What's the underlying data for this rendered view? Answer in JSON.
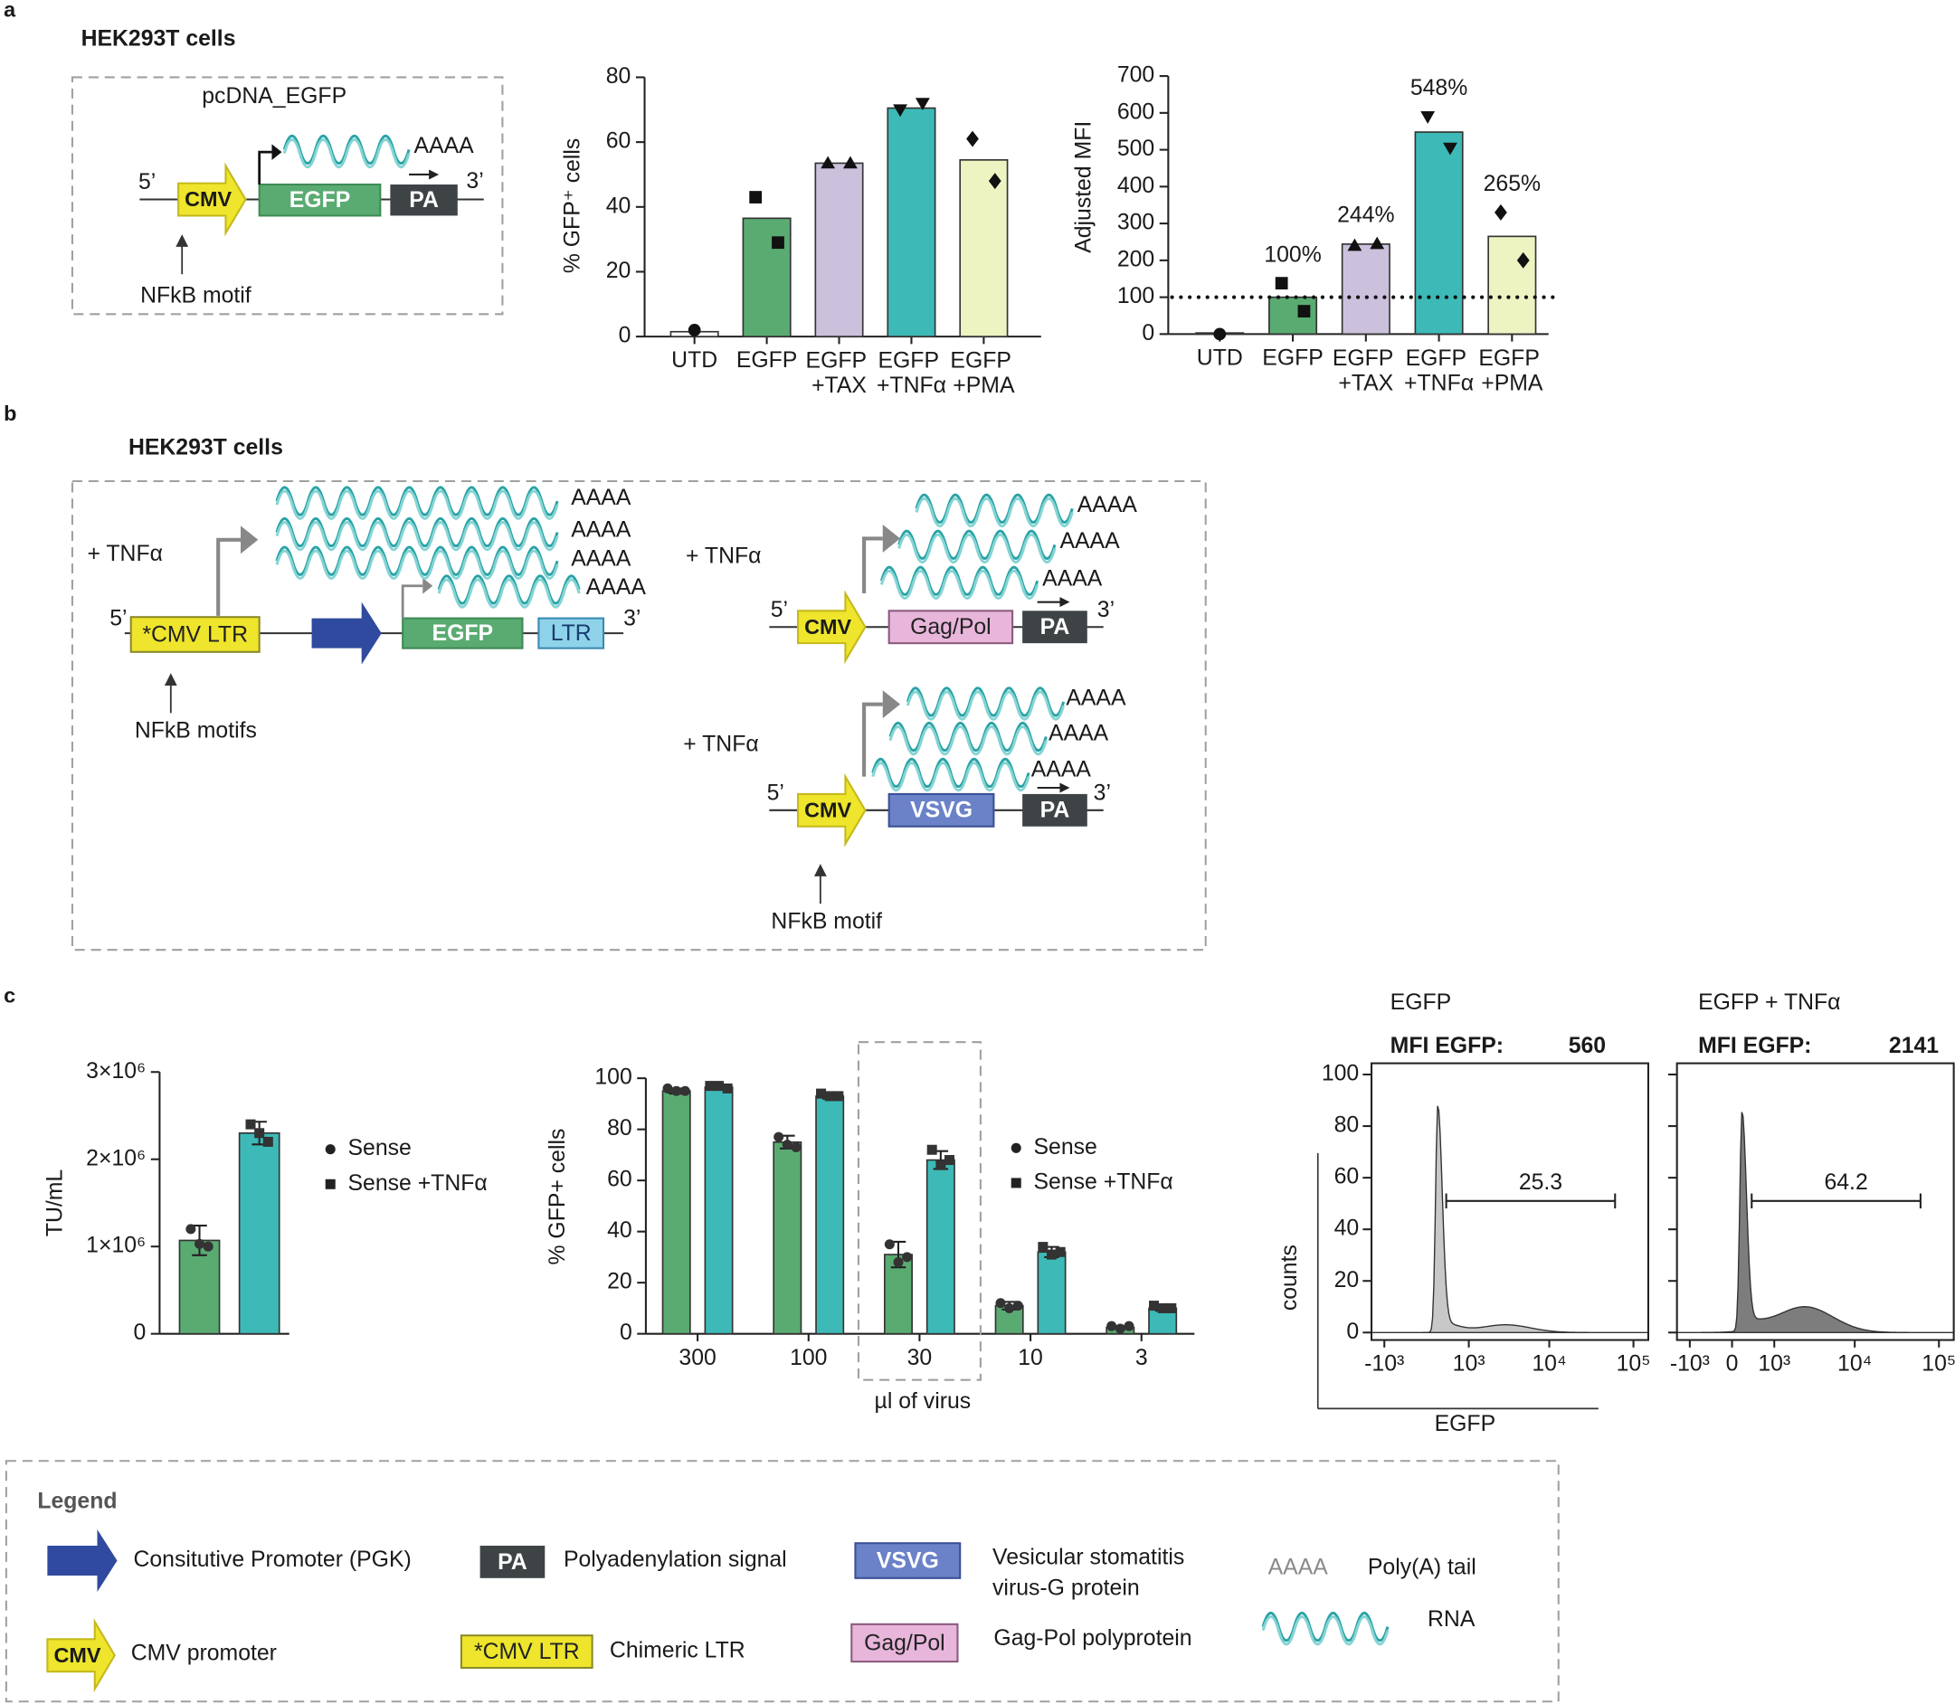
{
  "panel_a_diagram": {
    "panel_label": "a",
    "cell_line": "HEK293T cells",
    "plasmid": "pcDNA_EGFP",
    "five_prime": "5’",
    "three_prime": "3’",
    "promoter": "CMV",
    "gene": "EGFP",
    "polya_signal": "PA",
    "polya_tail": "AAAA",
    "motif": "NFkB motif"
  },
  "panel_b_diagram": {
    "panel_label": "b",
    "cell_line": "HEK293T cells",
    "constructs": [
      {
        "treatment": "+ TNFα",
        "five_prime": "5’",
        "three_prime": "3’",
        "promoter": "*CMV LTR",
        "gene": "EGFP",
        "terminal": "LTR",
        "polya_tails": [
          "AAAA",
          "AAAA",
          "AAAA",
          "AAAA"
        ],
        "motif": "NFkB motifs"
      },
      {
        "treatment": "+ TNFα",
        "five_prime": "5’",
        "three_prime": "3’",
        "promoter": "CMV",
        "gene": "Gag/Pol",
        "terminal": "PA",
        "polya_tails": [
          "AAAA",
          "AAAA",
          "AAAA"
        ]
      },
      {
        "treatment": "+ TNFα",
        "five_prime": "5’",
        "three_prime": "3’",
        "promoter": "CMV",
        "gene": "VSVG",
        "terminal": "PA",
        "polya_tails": [
          "AAAA",
          "AAAA",
          "AAAA"
        ],
        "motif": "NFkB motif"
      }
    ]
  },
  "panel_c_label": "c",
  "legend": {
    "title": "Legend",
    "items": [
      {
        "text": "Consitutive Promoter (PGK)"
      },
      {
        "symbol": "PA",
        "text": "Polyadenylation signal"
      },
      {
        "symbol": "VSVG",
        "text": [
          "Vesicular stomatitis",
          "virus-G protein"
        ]
      },
      {
        "symbol": "AAAA",
        "text": "Poly(A) tail"
      },
      {
        "text": "RNA"
      },
      {
        "symbol": "CMV",
        "text": "CMV promoter"
      },
      {
        "symbol": "*CMV LTR",
        "text": "Chimeric LTR"
      },
      {
        "symbol": "Gag/Pol",
        "text": "Gag-Pol polyprotein"
      }
    ]
  },
  "chart_data": [
    {
      "type": "bar",
      "ylabel": "% GFP⁺ cells",
      "categories": [
        "UTD",
        "EGFP",
        "EGFP +TAX",
        "EGFP +TNFα",
        "EGFP +PMA"
      ],
      "values": [
        1.5,
        36.5,
        53.5,
        70.5,
        54.5
      ],
      "colors": [
        "#ffffff",
        "#5aab72",
        "#cbc1dd",
        "#3dbab7",
        "#eef3c2"
      ],
      "replicates": [
        [
          2
        ],
        [
          43,
          29
        ],
        [
          53.5,
          53.5
        ],
        [
          70,
          72
        ],
        [
          61,
          48
        ]
      ],
      "markers": [
        "circle",
        "square",
        "triangle",
        "triangle-down",
        "diamond"
      ],
      "ylim": [
        0,
        80
      ],
      "yticks": [
        0,
        20,
        40,
        60,
        80
      ]
    },
    {
      "type": "bar",
      "ylabel": "Adjusted MFI",
      "categories": [
        "UTD",
        "EGFP",
        "EGFP +TAX",
        "EGFP +TNFα",
        "EGFP +PMA"
      ],
      "values": [
        3,
        100,
        244,
        548,
        265
      ],
      "value_labels": [
        null,
        "100%",
        "244%",
        "548%",
        "265%"
      ],
      "colors": [
        "#ffffff",
        "#5aab72",
        "#cbc1dd",
        "#3dbab7",
        "#eef3c2"
      ],
      "replicates": [
        [
          0
        ],
        [
          138,
          62
        ],
        [
          240,
          245
        ],
        [
          590,
          505
        ],
        [
          330,
          200
        ]
      ],
      "markers": [
        "circle",
        "square",
        "triangle",
        "triangle-down",
        "diamond"
      ],
      "refline": 100,
      "ylim": [
        0,
        700
      ],
      "yticks": [
        0,
        100,
        200,
        300,
        400,
        500,
        600,
        700
      ]
    },
    {
      "type": "bar",
      "ylabel": "TU/mL",
      "categories": [
        null
      ],
      "series": [
        {
          "name": "Sense",
          "color": "#5aab72",
          "marker": "circle",
          "values": [
            1070000
          ],
          "errors": [
            170000
          ],
          "points": [
            [
              1200000,
              1030000,
              1000000
            ]
          ]
        },
        {
          "name": "Sense +TNFα",
          "color": "#3dbab7",
          "marker": "square",
          "values": [
            2300000
          ],
          "errors": [
            130000
          ],
          "points": [
            [
              2400000,
              2300000,
              2200000
            ]
          ]
        }
      ],
      "ylim": [
        0,
        3000000
      ],
      "yticks": [
        0,
        {
          "value": 1000000,
          "label": "1×10⁶"
        },
        {
          "value": 2000000,
          "label": "2×10⁶"
        },
        {
          "value": 3000000,
          "label": "3×10⁶"
        }
      ],
      "legend": "right"
    },
    {
      "type": "bar",
      "ylabel": "% GFP+ cells",
      "xlabel": "µl of virus",
      "categories": [
        "300",
        "100",
        "30",
        "10",
        "3"
      ],
      "series": [
        {
          "name": "Sense",
          "color": "#5aab72",
          "marker": "circle",
          "values": [
            95,
            75,
            31,
            11,
            2.5
          ],
          "errors": [
            1,
            2.5,
            5,
            1.5,
            0.5
          ],
          "points": [
            [
              96,
              95,
              95
            ],
            [
              77,
              74,
              73
            ],
            [
              35,
              28,
              30
            ],
            [
              12,
              10,
              11
            ],
            [
              3,
              2,
              3
            ]
          ]
        },
        {
          "name": "Sense +TNFα",
          "color": "#3dbab7",
          "marker": "square",
          "values": [
            96.5,
            93,
            68,
            32,
            10
          ],
          "errors": [
            0.5,
            1,
            3.5,
            2,
            1
          ],
          "points": [
            [
              97,
              97,
              96
            ],
            [
              94,
              93,
              93
            ],
            [
              72,
              66,
              68
            ],
            [
              34,
              31,
              32
            ],
            [
              11,
              10,
              10
            ]
          ]
        }
      ],
      "highlight": "30",
      "ylim": [
        0,
        100
      ],
      "yticks": [
        0,
        20,
        40,
        60,
        80,
        100
      ],
      "legend": "right"
    },
    {
      "type": "flow",
      "title": "EGFP",
      "stat_label": "MFI EGFP:",
      "stat_value": 560,
      "gate": 25.3,
      "ylabel": "counts",
      "xlabel": "EGFP",
      "color": "#c8c8c8",
      "xscale": "biexponential",
      "ylim": [
        0,
        100
      ],
      "yticks": [
        0,
        20,
        40,
        60,
        80,
        100
      ],
      "xlim": [
        -1500,
        150000
      ],
      "xticks": [
        {
          "value": -1000,
          "label": "-10³"
        },
        {
          "value": 1000,
          "label": "10³"
        },
        {
          "value": 10000,
          "label": "10⁴"
        },
        {
          "value": 100000,
          "label": "10⁵"
        }
      ]
    },
    {
      "type": "flow",
      "title": "EGFP + TNFα",
      "stat_label": "MFI EGFP:",
      "stat_value": 2141,
      "gate": 64.2,
      "color": "#7d7d7d",
      "xscale": "biexponential",
      "ytick_labels": false,
      "ylim": [
        0,
        100
      ],
      "yticks": [
        0,
        20,
        40,
        60,
        80,
        100
      ],
      "xlim": [
        -1500,
        150000
      ],
      "xticks": [
        {
          "value": -1000,
          "label": "-10³"
        },
        0,
        {
          "value": 1000,
          "label": "10³"
        },
        {
          "value": 10000,
          "label": "10⁴"
        },
        {
          "value": 100000,
          "label": "10⁵"
        }
      ]
    }
  ]
}
